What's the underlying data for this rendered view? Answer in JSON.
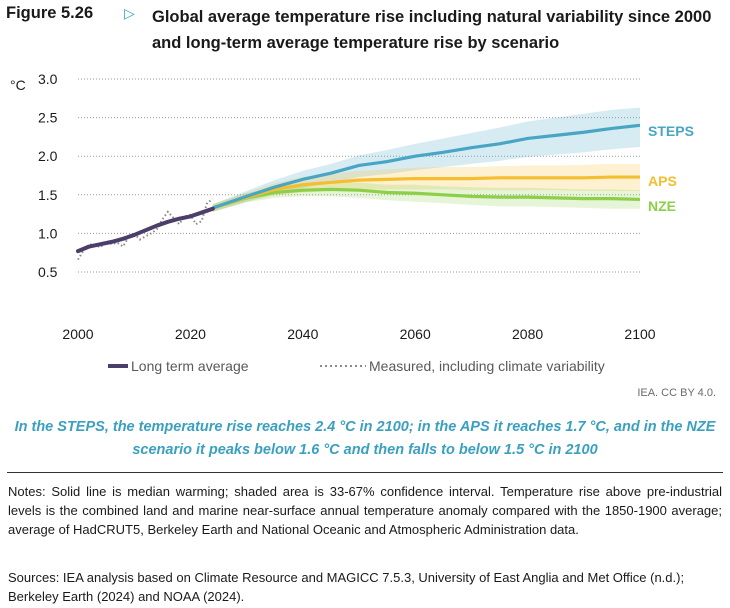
{
  "figure": {
    "number": "Figure 5.26",
    "arrow": "▷",
    "title": "Global average temperature rise including natural variability since 2000 and long-term average temperature rise by scenario"
  },
  "credit": "IEA. CC BY 4.0.",
  "highlight": "In the STEPS, the temperature rise reaches 2.4 °C in 2100; in the APS it reaches 1.7 °C, and in the NZE scenario it peaks below 1.6 °C and then falls to below 1.5 °C in 2100",
  "notes": "Notes: Solid line is median warming; shaded area is 33-67% confidence interval. Temperature rise above pre-industrial levels is the combined land and marine near-surface annual temperature anomaly compared with the 1850-1900 average; average of HadCRUT5, Berkeley Earth and National Oceanic and Atmospheric Administration data.",
  "sources": "Sources: IEA analysis based on Climate Resource and MAGICC 7.5.3, University of East Anglia and Met Office (n.d.); Berkeley Earth (2024) and NOAA (2024).",
  "colors": {
    "steps": "#48a6c4",
    "aps": "#f5be2e",
    "nze": "#8ecf4a",
    "long_term": "#4b3e6b",
    "measured": "#8a8a8a",
    "highlight": "#3aa0c0"
  },
  "chart_data": {
    "type": "line",
    "ylabel": "°C",
    "xlim": [
      2000,
      2100
    ],
    "ylim": [
      0.5,
      3.0
    ],
    "xticks": [
      "2000",
      "2020",
      "2040",
      "2060",
      "2080",
      "2100"
    ],
    "yticks": [
      "3.0",
      "2.5",
      "2.0",
      "1.5",
      "1.0",
      "0.5"
    ],
    "grid": "horizontal dotted",
    "legend": {
      "position": "bottom",
      "entries": [
        "Long term average",
        "Measured, including climate variability"
      ]
    },
    "historical": {
      "long_term_average": {
        "name": "Long term average",
        "x": [
          2000,
          2002,
          2004,
          2006,
          2008,
          2010,
          2012,
          2014,
          2016,
          2018,
          2020,
          2022,
          2024
        ],
        "y": [
          0.77,
          0.83,
          0.86,
          0.89,
          0.93,
          0.98,
          1.04,
          1.1,
          1.15,
          1.19,
          1.22,
          1.27,
          1.32
        ]
      },
      "measured": {
        "name": "Measured, including climate variability",
        "x": [
          2000,
          2001,
          2002,
          2003,
          2004,
          2005,
          2006,
          2007,
          2008,
          2009,
          2010,
          2011,
          2012,
          2013,
          2014,
          2015,
          2016,
          2017,
          2018,
          2019,
          2020,
          2021,
          2022,
          2023,
          2024
        ],
        "y": [
          0.66,
          0.78,
          0.86,
          0.85,
          0.82,
          0.9,
          0.86,
          0.88,
          0.83,
          0.95,
          1.0,
          0.92,
          0.96,
          1.0,
          1.05,
          1.18,
          1.28,
          1.2,
          1.12,
          1.22,
          1.24,
          1.12,
          1.16,
          1.4,
          1.44
        ]
      }
    },
    "scenarios": [
      {
        "name": "STEPS",
        "x": [
          2024,
          2030,
          2035,
          2040,
          2045,
          2050,
          2055,
          2060,
          2065,
          2070,
          2075,
          2080,
          2085,
          2090,
          2095,
          2100
        ],
        "y": [
          1.33,
          1.48,
          1.6,
          1.7,
          1.78,
          1.88,
          1.93,
          2.0,
          2.05,
          2.11,
          2.16,
          2.23,
          2.27,
          2.31,
          2.36,
          2.4
        ],
        "low": [
          1.28,
          1.41,
          1.51,
          1.59,
          1.66,
          1.73,
          1.77,
          1.82,
          1.86,
          1.9,
          1.94,
          1.99,
          2.02,
          2.05,
          2.09,
          2.12
        ],
        "high": [
          1.38,
          1.55,
          1.69,
          1.81,
          1.9,
          2.01,
          2.08,
          2.16,
          2.23,
          2.3,
          2.37,
          2.45,
          2.5,
          2.55,
          2.6,
          2.63
        ]
      },
      {
        "name": "APS",
        "x": [
          2024,
          2030,
          2035,
          2040,
          2045,
          2050,
          2055,
          2060,
          2065,
          2070,
          2075,
          2080,
          2085,
          2090,
          2095,
          2100
        ],
        "y": [
          1.33,
          1.47,
          1.57,
          1.63,
          1.66,
          1.69,
          1.7,
          1.71,
          1.71,
          1.71,
          1.72,
          1.72,
          1.72,
          1.72,
          1.73,
          1.73
        ],
        "low": [
          1.28,
          1.41,
          1.49,
          1.53,
          1.55,
          1.57,
          1.57,
          1.57,
          1.57,
          1.56,
          1.56,
          1.56,
          1.56,
          1.55,
          1.55,
          1.55
        ],
        "high": [
          1.38,
          1.53,
          1.65,
          1.73,
          1.77,
          1.81,
          1.83,
          1.85,
          1.86,
          1.86,
          1.87,
          1.88,
          1.88,
          1.89,
          1.9,
          1.9
        ]
      },
      {
        "name": "NZE",
        "x": [
          2024,
          2030,
          2035,
          2040,
          2045,
          2050,
          2055,
          2060,
          2065,
          2070,
          2075,
          2080,
          2085,
          2090,
          2095,
          2100
        ],
        "y": [
          1.33,
          1.46,
          1.53,
          1.56,
          1.57,
          1.56,
          1.53,
          1.52,
          1.5,
          1.48,
          1.47,
          1.47,
          1.46,
          1.45,
          1.45,
          1.44
        ],
        "low": [
          1.28,
          1.4,
          1.46,
          1.48,
          1.48,
          1.46,
          1.43,
          1.41,
          1.39,
          1.37,
          1.35,
          1.35,
          1.34,
          1.33,
          1.32,
          1.32
        ],
        "high": [
          1.38,
          1.52,
          1.6,
          1.64,
          1.66,
          1.66,
          1.63,
          1.63,
          1.61,
          1.6,
          1.59,
          1.59,
          1.58,
          1.57,
          1.57,
          1.56
        ]
      }
    ]
  }
}
